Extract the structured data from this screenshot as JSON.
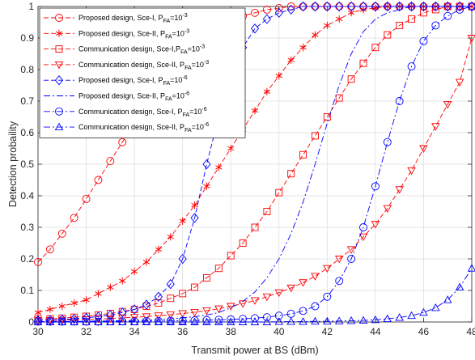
{
  "chart_data": {
    "type": "line",
    "xlabel": "Transmit power at BS (dBm)",
    "ylabel": "Detection probaility",
    "xlim": [
      30,
      48
    ],
    "ylim": [
      0,
      1
    ],
    "x_ticks": [
      30,
      32,
      34,
      36,
      38,
      40,
      42,
      44,
      46,
      48
    ],
    "y_ticks": [
      0,
      0.1,
      0.2,
      0.3,
      0.4,
      0.5,
      0.6,
      0.7,
      0.8,
      0.9,
      1
    ],
    "grid": true,
    "legend_position": "top-left",
    "x": [
      30,
      30.5,
      31,
      31.5,
      32,
      32.5,
      33,
      33.5,
      34,
      34.5,
      35,
      35.5,
      36,
      36.5,
      37,
      37.5,
      38,
      38.5,
      39,
      39.5,
      40,
      40.5,
      41,
      41.5,
      42,
      42.5,
      43,
      43.5,
      44,
      44.5,
      45,
      45.5,
      46,
      46.5,
      47,
      47.5,
      48
    ],
    "series": [
      {
        "name": "Proposed design, Sce-I, P",
        "sub": "FA",
        "eq": "=10",
        "sup": "-3",
        "color": "#ff0000",
        "dash": "6,3",
        "marker": "circle",
        "values": [
          0.19,
          0.23,
          0.28,
          0.33,
          0.39,
          0.45,
          0.51,
          0.57,
          0.63,
          0.69,
          0.74,
          0.79,
          0.83,
          0.87,
          0.9,
          0.93,
          0.95,
          0.97,
          0.98,
          0.99,
          0.995,
          1,
          1,
          1,
          1,
          1,
          1,
          1,
          1,
          1,
          1,
          1,
          1,
          1,
          1,
          1,
          1
        ]
      },
      {
        "name": "Proposed design, Sce-II, P",
        "sub": "FA",
        "eq": "=10",
        "sup": "-3",
        "color": "#ff0000",
        "dash": "6,3",
        "marker": "star",
        "values": [
          0.03,
          0.04,
          0.05,
          0.06,
          0.07,
          0.09,
          0.11,
          0.13,
          0.16,
          0.19,
          0.23,
          0.27,
          0.32,
          0.37,
          0.43,
          0.49,
          0.55,
          0.61,
          0.67,
          0.73,
          0.78,
          0.83,
          0.87,
          0.91,
          0.94,
          0.96,
          0.98,
          0.99,
          0.995,
          1,
          1,
          1,
          1,
          1,
          1,
          1,
          1
        ]
      },
      {
        "name": "Communication design, Sce-I,P",
        "sub": "FA",
        "eq": "=10",
        "sup": "-3",
        "color": "#ff0000",
        "dash": "6,3",
        "marker": "square",
        "values": [
          0.01,
          0.01,
          0.012,
          0.015,
          0.018,
          0.022,
          0.027,
          0.033,
          0.04,
          0.05,
          0.06,
          0.075,
          0.09,
          0.11,
          0.14,
          0.17,
          0.21,
          0.25,
          0.3,
          0.35,
          0.41,
          0.47,
          0.53,
          0.59,
          0.65,
          0.71,
          0.77,
          0.82,
          0.87,
          0.91,
          0.94,
          0.96,
          0.98,
          0.99,
          1,
          1,
          1
        ]
      },
      {
        "name": "Communication design, Sce-II, P",
        "sub": "FA",
        "eq": "=10",
        "sup": "-3",
        "color": "#ff0000",
        "dash": "6,3",
        "marker": "triangle-down",
        "values": [
          0.005,
          0.005,
          0.006,
          0.007,
          0.008,
          0.009,
          0.011,
          0.013,
          0.015,
          0.017,
          0.02,
          0.023,
          0.027,
          0.031,
          0.036,
          0.042,
          0.05,
          0.058,
          0.068,
          0.08,
          0.093,
          0.108,
          0.125,
          0.145,
          0.17,
          0.2,
          0.23,
          0.27,
          0.31,
          0.36,
          0.42,
          0.48,
          0.55,
          0.62,
          0.69,
          0.76,
          0.9
        ]
      },
      {
        "name": "Proposed design, Sce-I, P",
        "sub": "FA",
        "eq": "=10",
        "sup": "-6",
        "color": "#0000ff",
        "dash": "6,3",
        "marker": "diamond",
        "values": [
          0.005,
          0.006,
          0.008,
          0.01,
          0.013,
          0.017,
          0.022,
          0.03,
          0.04,
          0.055,
          0.08,
          0.12,
          0.2,
          0.33,
          0.5,
          0.65,
          0.78,
          0.87,
          0.93,
          0.96,
          0.98,
          0.99,
          1,
          1,
          1,
          1,
          1,
          1,
          1,
          1,
          1,
          1,
          1,
          1,
          1,
          1,
          1
        ]
      },
      {
        "name": "Proposed design, Sce-II, P",
        "sub": "FA",
        "eq": "=10",
        "sup": "-6",
        "color": "#0000ff",
        "dash": "8,3,2,3",
        "marker": "none",
        "values": [
          0.001,
          0.001,
          0.001,
          0.002,
          0.002,
          0.003,
          0.003,
          0.004,
          0.005,
          0.006,
          0.008,
          0.01,
          0.013,
          0.017,
          0.022,
          0.03,
          0.045,
          0.065,
          0.095,
          0.14,
          0.2,
          0.28,
          0.38,
          0.5,
          0.63,
          0.75,
          0.85,
          0.92,
          0.96,
          0.98,
          0.99,
          1,
          1,
          1,
          1,
          1,
          1
        ]
      },
      {
        "name": "Communication design, Sce-I, P",
        "sub": "FA",
        "eq": "=10",
        "sup": "-6",
        "color": "#0000ff",
        "dash": "8,3,2,3",
        "marker": "circle",
        "values": [
          0.001,
          0.001,
          0.001,
          0.001,
          0.001,
          0.001,
          0.002,
          0.002,
          0.002,
          0.003,
          0.003,
          0.004,
          0.004,
          0.005,
          0.006,
          0.007,
          0.008,
          0.01,
          0.012,
          0.015,
          0.02,
          0.026,
          0.035,
          0.05,
          0.08,
          0.13,
          0.2,
          0.3,
          0.43,
          0.57,
          0.7,
          0.81,
          0.89,
          0.94,
          0.97,
          0.99,
          1
        ]
      },
      {
        "name": "Communication design, Sce-II, P",
        "sub": "FA",
        "eq": "=10",
        "sup": "-6",
        "color": "#0000ff",
        "dash": "8,3,2,3",
        "marker": "triangle-up",
        "values": [
          0,
          0,
          0,
          0,
          0,
          0,
          0,
          0,
          0,
          0,
          0,
          0,
          0,
          0,
          0,
          0,
          0,
          0,
          0,
          0,
          0.001,
          0.001,
          0.001,
          0.002,
          0.002,
          0.003,
          0.004,
          0.005,
          0.007,
          0.01,
          0.014,
          0.02,
          0.03,
          0.045,
          0.07,
          0.11,
          0.17
        ]
      }
    ]
  }
}
